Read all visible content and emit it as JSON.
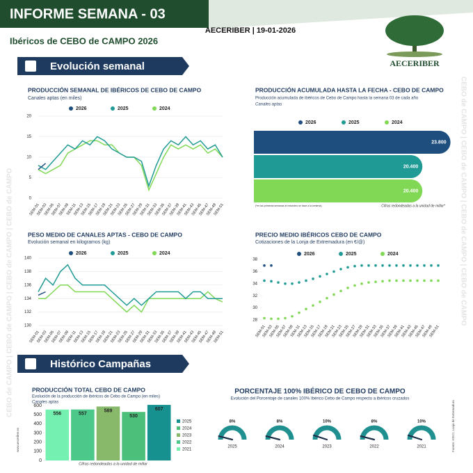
{
  "header": {
    "title": "INFORME SEMANA - 03",
    "subtitle": "Ibéricos de CEBO de CAMPO 2026",
    "date": "AECERIBER | 19-01-2026",
    "logo": "AECERIBER"
  },
  "sections": [
    "Evolución semanal",
    "Histórico Campañas"
  ],
  "side_text": "CEBO de CAMPO | CEBO de CAMPO | CEBO de CAMPO | CEBO de CAMPO",
  "website": "www.aeceriber.es",
  "source": "Fuente: ASICI, Lonja de Extremadura",
  "chart_data": [
    {
      "type": "line",
      "title": "PRODUCCIÓN SEMANAL DE IBÉRICOS DE CEBO DE CAMPO",
      "subtitle": "Canales aptas (en miles)",
      "categories": [
        "SEM-01",
        "SEM-03",
        "SEM-05",
        "SEM-07",
        "SEM-09",
        "SEM-11",
        "SEM-13",
        "SEM-15",
        "SEM-17",
        "SEM-19",
        "SEM-21",
        "SEM-23",
        "SEM-25",
        "SEM-27",
        "SEM-29",
        "SEM-31",
        "SEM-33",
        "SEM-35",
        "SEM-37",
        "SEM-39",
        "SEM-41",
        "SEM-43",
        "SEM-45",
        "SEM-47",
        "SEM-49",
        "SEM-51"
      ],
      "ylim": [
        0,
        20
      ],
      "yticks": [
        0,
        5,
        10,
        15,
        20
      ],
      "grid": true,
      "series": [
        {
          "name": "2026",
          "color": "#1d4e7e",
          "values": [
            7,
            8.5,
            null,
            null,
            null,
            null,
            null,
            null,
            null,
            null,
            null,
            null,
            null,
            null,
            null,
            null,
            null,
            null,
            null,
            null,
            null,
            null,
            null,
            null,
            null,
            null
          ]
        },
        {
          "name": "2025",
          "color": "#1f9a94",
          "values": [
            8,
            7,
            9,
            11,
            13,
            12,
            14,
            13,
            15,
            14,
            12,
            11,
            10,
            10,
            9,
            3,
            8,
            12,
            14,
            13,
            15,
            13,
            14,
            12,
            13,
            10
          ]
        },
        {
          "name": "2024",
          "color": "#80d855",
          "values": [
            7,
            6,
            7,
            8,
            11,
            12,
            13,
            14,
            14,
            13,
            13,
            11,
            10,
            10,
            8,
            2,
            6,
            10,
            13,
            12,
            13,
            12,
            13,
            11,
            12,
            10
          ]
        }
      ]
    },
    {
      "type": "hbar",
      "title": "PRODUCCIÓN ACUMULADA HASTA LA FECHA - CEBO DE CAMPO",
      "subtitle": "Producción acumulada de ibéricos de Cebo de Campo hasta la semana 03 de cada año",
      "note": "Canales aptas",
      "footnote": "(*en las primeras semanas el redondeo se hace a la centena)",
      "caption": "Cifras redondeadas a la unidad de millar*",
      "categories": [
        "2026",
        "2025",
        "2024"
      ],
      "values": [
        23800,
        20400,
        20400
      ],
      "value_labels": [
        "23.800",
        "20.400",
        "20.400"
      ],
      "colors": [
        "#1d4e7e",
        "#1f9a94",
        "#80d855"
      ],
      "xlim": [
        0,
        24000
      ]
    },
    {
      "type": "line",
      "title": "PESO MEDIO DE CANALES APTAS - CEBO DE CAMPO",
      "subtitle": "Evolución semanal en kilogramos (kg)",
      "categories": [
        "SEM-01",
        "SEM-03",
        "SEM-05",
        "SEM-07",
        "SEM-09",
        "SEM-11",
        "SEM-13",
        "SEM-15",
        "SEM-17",
        "SEM-19",
        "SEM-21",
        "SEM-23",
        "SEM-25",
        "SEM-27",
        "SEM-29",
        "SEM-31",
        "SEM-33",
        "SEM-35",
        "SEM-37",
        "SEM-39",
        "SEM-41",
        "SEM-43",
        "SEM-45",
        "SEM-47",
        "SEM-49",
        "SEM-51"
      ],
      "ylim": [
        130,
        140
      ],
      "yticks": [
        130,
        132,
        134,
        136,
        138,
        140
      ],
      "grid": true,
      "series": [
        {
          "name": "2026",
          "color": "#1d4e7e",
          "values": [
            134.5,
            135,
            null,
            null,
            null,
            null,
            null,
            null,
            null,
            null,
            null,
            null,
            null,
            null,
            null,
            null,
            null,
            null,
            null,
            null,
            null,
            null,
            null,
            null,
            null,
            null
          ]
        },
        {
          "name": "2025",
          "color": "#1f9a94",
          "values": [
            135,
            137,
            136,
            138,
            139,
            137,
            136,
            136,
            136,
            136,
            135,
            134,
            133,
            134,
            133,
            134,
            135,
            135,
            135,
            135,
            134,
            135,
            135,
            134,
            134,
            134
          ]
        },
        {
          "name": "2024",
          "color": "#80d855",
          "values": [
            134,
            134,
            135,
            136,
            136,
            135,
            135,
            135,
            135,
            135,
            134,
            133,
            132,
            133,
            132,
            134,
            134,
            134,
            134,
            134,
            134,
            134,
            134,
            135,
            134,
            133.5
          ]
        }
      ]
    },
    {
      "type": "line",
      "title": "PRECIO MEDIO IBÉRICOS CEBO DE CAMPO",
      "subtitle": "Cotizaciones de la Lonja de Extremadura (en €/@)",
      "marker": "circle",
      "categories": [
        "SEM-01",
        "SEM-03",
        "SEM-05",
        "SEM-07",
        "SEM-09",
        "SEM-11",
        "SEM-13",
        "SEM-15",
        "SEM-17",
        "SEM-19",
        "SEM-21",
        "SEM-23",
        "SEM-25",
        "SEM-27",
        "SEM-29",
        "SEM-31",
        "SEM-33",
        "SEM-35",
        "SEM-37",
        "SEM-39",
        "SEM-41",
        "SEM-43",
        "SEM-45",
        "SEM-47",
        "SEM-49",
        "SEM-51"
      ],
      "ylim": [
        28,
        38
      ],
      "yticks": [
        28,
        30,
        32,
        34,
        36,
        38
      ],
      "grid": false,
      "series": [
        {
          "name": "2026",
          "color": "#1d4e7e",
          "values": [
            37,
            37,
            null,
            null,
            null,
            null,
            null,
            null,
            null,
            null,
            null,
            null,
            null,
            null,
            null,
            null,
            null,
            null,
            null,
            null,
            null,
            null,
            null,
            null,
            null,
            null
          ]
        },
        {
          "name": "2025",
          "color": "#1f9a94",
          "values": [
            34.5,
            34.4,
            34.2,
            34,
            34,
            34.2,
            34.5,
            34.8,
            35.2,
            35.6,
            36,
            36.4,
            36.7,
            36.9,
            37,
            37,
            37,
            37,
            37,
            37,
            37,
            37,
            37,
            37,
            37,
            37
          ]
        },
        {
          "name": "2024",
          "color": "#80d855",
          "values": [
            28.3,
            28.2,
            28.2,
            28.3,
            28.6,
            29.2,
            29.8,
            30.4,
            31,
            31.6,
            32.2,
            32.8,
            33.3,
            33.7,
            34,
            34.2,
            34.3,
            34.4,
            34.5,
            34.5,
            34.5,
            34.5,
            34.5,
            34.5,
            34.5,
            34.5
          ]
        }
      ]
    },
    {
      "type": "bar",
      "title": "PRODUCCIÓN TOTAL CEBO DE CAMPO",
      "subtitle": "Evolución de la producción de ibéricos de Cebo de Campo (en miles)",
      "note": "Canales aptas",
      "caption": "Cifras redondeadas a la unidad de millar",
      "categories": [
        "2021",
        "2022",
        "2023",
        "2024",
        "2025"
      ],
      "values": [
        556,
        557,
        589,
        530,
        607
      ],
      "colors": [
        "#74f0b0",
        "#4cc98a",
        "#88b86a",
        "#4cc07a",
        "#17918f"
      ],
      "ylim": [
        0,
        600
      ],
      "yticks": [
        0,
        100,
        200,
        300,
        400,
        500,
        600
      ]
    },
    {
      "type": "gauge",
      "title": "PORCENTAJE 100% IBÉRICO DE CEBO DE CAMPO",
      "subtitle": "Evolución del Porcentaje de canales 100% Ibérico Cebo de Campo respecto a ibéricos cruzados",
      "categories": [
        "2025",
        "2024",
        "2023",
        "2022",
        "2021"
      ],
      "values": [
        8,
        8,
        10,
        8,
        10
      ],
      "value_labels": [
        "8%",
        "8%",
        "10%",
        "8%",
        "10%"
      ],
      "color": "#1f8f8f",
      "ylim": [
        0,
        100
      ]
    }
  ]
}
